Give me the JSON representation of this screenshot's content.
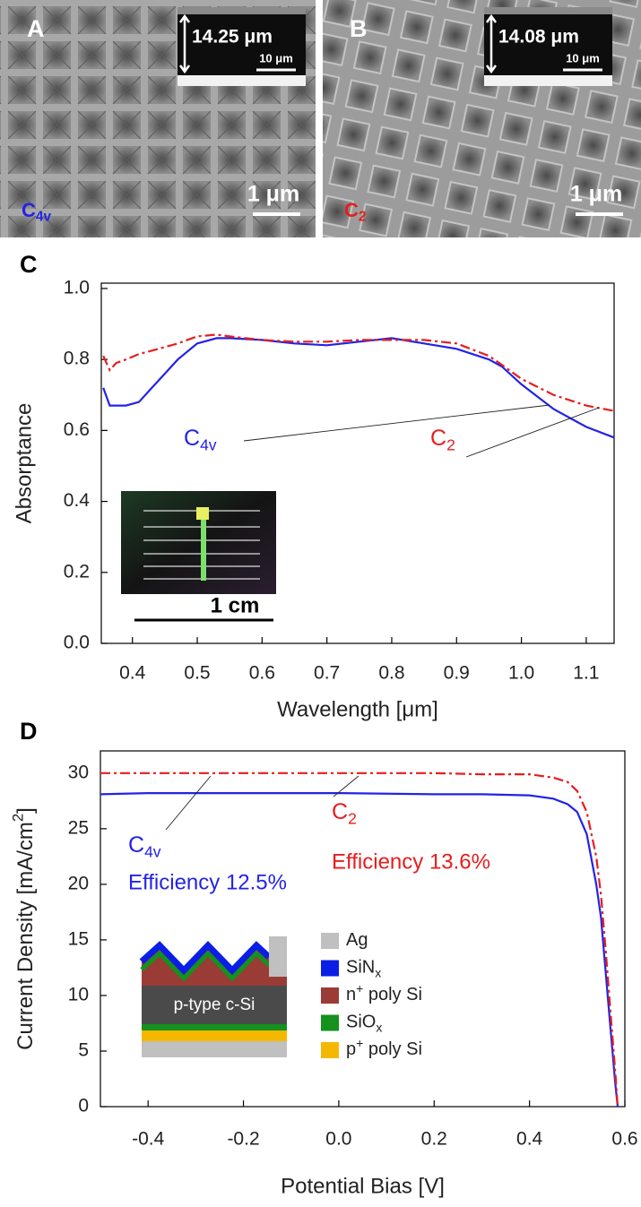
{
  "panels": [
    {
      "label": "A",
      "thickness": "14.25 μm",
      "inset_scale": "10 μm",
      "scale": "1 μm",
      "symmetry": {
        "text": "C",
        "sub": "4v"
      },
      "symmetry_color": "#2323e6"
    },
    {
      "label": "B",
      "thickness": "14.08 μm",
      "inset_scale": "10 μm",
      "scale": "1 μm",
      "symmetry": {
        "text": "C",
        "sub": "2"
      },
      "symmetry_color": "#e61e1e"
    }
  ],
  "chart_data": [
    {
      "type": "line",
      "label": "C",
      "x_label": "Wavelength [μm]",
      "y_label": "Absorptance",
      "x": [
        0.355,
        0.365,
        0.375,
        0.39,
        0.41,
        0.43,
        0.45,
        0.47,
        0.5,
        0.53,
        0.55,
        0.6,
        0.65,
        0.7,
        0.75,
        0.8,
        0.85,
        0.9,
        0.95,
        0.97,
        1.0,
        1.05,
        1.1,
        1.143
      ],
      "series": [
        {
          "name": {
            "text": "C",
            "sub": "4v"
          },
          "color": "#2323e6",
          "style": "solid",
          "values": [
            0.72,
            0.67,
            0.67,
            0.67,
            0.68,
            0.72,
            0.76,
            0.8,
            0.845,
            0.86,
            0.86,
            0.855,
            0.845,
            0.84,
            0.85,
            0.86,
            0.845,
            0.83,
            0.8,
            0.78,
            0.73,
            0.66,
            0.61,
            0.58
          ]
        },
        {
          "name": {
            "text": "C",
            "sub": "2"
          },
          "color": "#e61e1e",
          "style": "dashdot",
          "values": [
            0.81,
            0.77,
            0.79,
            0.8,
            0.815,
            0.825,
            0.835,
            0.845,
            0.865,
            0.87,
            0.865,
            0.855,
            0.85,
            0.85,
            0.855,
            0.855,
            0.855,
            0.845,
            0.81,
            0.785,
            0.745,
            0.7,
            0.67,
            0.655
          ]
        }
      ],
      "xlim": [
        0.352,
        1.143
      ],
      "ylim": [
        0,
        1.015
      ],
      "xticks": [
        0.4,
        0.5,
        0.6,
        0.7,
        0.8,
        0.9,
        {
          "value": 1,
          "label": "1.0"
        },
        1.1
      ],
      "yticks": [
        {
          "value": 0,
          "label": "0.0"
        },
        0.2,
        0.4,
        0.6,
        0.8,
        {
          "value": 1,
          "label": "1.0"
        }
      ],
      "inset_scale": "1 cm"
    },
    {
      "type": "line",
      "label": "D",
      "x_label": "Potential Bias [V]",
      "y_label": {
        "text": "Current Density [mA/cm",
        "sup": "2",
        "rest": "]"
      },
      "x": [
        -0.5,
        -0.4,
        -0.2,
        0,
        0.2,
        0.3,
        0.4,
        0.45,
        0.48,
        0.5,
        0.52,
        0.54,
        0.55,
        0.56,
        0.57,
        0.58,
        0.585
      ],
      "series": [
        {
          "name": {
            "text": "C",
            "sub": "4v"
          },
          "note": "Efficiency 12.5%",
          "color": "#2323e6",
          "style": "solid",
          "values": [
            28.1,
            28.2,
            28.2,
            28.2,
            28.1,
            28.1,
            28.0,
            27.7,
            27.2,
            26.5,
            24.5,
            20,
            17,
            12,
            7,
            2,
            0
          ]
        },
        {
          "name": {
            "text": "C",
            "sub": "2"
          },
          "note": "Efficiency 13.6%",
          "color": "#e61e1e",
          "style": "dashdot",
          "values": [
            30.0,
            30.0,
            30.0,
            30.0,
            30.0,
            29.9,
            29.9,
            29.6,
            29.2,
            28.4,
            26.5,
            22.5,
            19,
            14,
            8.5,
            3,
            0
          ]
        }
      ],
      "xlim": [
        -0.5,
        0.6
      ],
      "ylim": [
        0,
        32
      ],
      "xticks": [
        -0.4,
        -0.2,
        {
          "value": 0,
          "label": "0.0"
        },
        0.2,
        0.4,
        0.6
      ],
      "yticks": [
        0,
        5,
        10,
        15,
        20,
        25,
        30
      ],
      "inset": {
        "layer_label": "p-type c-Si",
        "legend": [
          {
            "name": {
              "text": "Ag"
            },
            "color": "#c0c0c0"
          },
          {
            "name": {
              "text": "SiN",
              "sub": "x"
            },
            "color": "#0a1ee6"
          },
          {
            "name": {
              "text": "n",
              "sup": "+",
              "rest": " poly Si"
            },
            "color": "#9a3b36"
          },
          {
            "name": {
              "text": "SiO",
              "sub": "x"
            },
            "color": "#14911e"
          },
          {
            "name": {
              "text": "p",
              "sup": "+",
              "rest": " poly Si"
            },
            "color": "#f5b800"
          }
        ]
      }
    }
  ]
}
